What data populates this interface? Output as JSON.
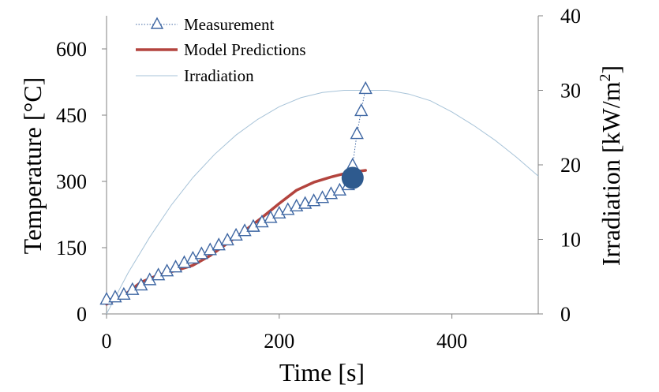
{
  "chart_data": {
    "type": "line",
    "x_axis": {
      "label": "Time [s]",
      "range": [
        0,
        500
      ],
      "ticks": [
        0,
        200,
        400
      ],
      "tick_labels": [
        "0",
        "200",
        "400"
      ]
    },
    "y_axis_left": {
      "label": "Temperature [°C]",
      "range": [
        0,
        675
      ],
      "ticks": [
        0,
        150,
        300,
        450,
        600
      ],
      "tick_labels": [
        "0",
        "150",
        "300",
        "450",
        "600"
      ]
    },
    "y_axis_right": {
      "label_main": "Irradiation [kW/m",
      "label_sup": "2",
      "label_end": "]",
      "range": [
        0,
        40
      ],
      "ticks": [
        0,
        10,
        20,
        30,
        40
      ],
      "tick_labels": [
        "0",
        "10",
        "20",
        "30",
        "40"
      ]
    },
    "grid": false,
    "legend_position": "top-left",
    "series": [
      {
        "name": "Measurement",
        "axis": "left",
        "marker": "triangle-open",
        "line": "dotted",
        "color": "#3f67a3",
        "x": [
          0,
          10,
          20,
          30,
          40,
          50,
          60,
          70,
          80,
          90,
          100,
          110,
          120,
          130,
          140,
          150,
          160,
          170,
          180,
          190,
          200,
          210,
          220,
          230,
          240,
          250,
          260,
          270,
          280,
          285,
          290,
          295,
          300
        ],
        "y": [
          33,
          38,
          44,
          55,
          65,
          77,
          88,
          97,
          106,
          116,
          126,
          136,
          145,
          156,
          167,
          178,
          188,
          198,
          208,
          218,
          228,
          236,
          244,
          250,
          256,
          263,
          272,
          280,
          292,
          337,
          408,
          460,
          510
        ]
      },
      {
        "name": "Model Predictions",
        "axis": "left",
        "line": "solid",
        "color": "#b3443e",
        "x": [
          0,
          20,
          40,
          60,
          80,
          100,
          120,
          140,
          160,
          180,
          200,
          220,
          240,
          260,
          280,
          300
        ],
        "y": [
          22,
          42,
          72,
          88,
          98,
          110,
          132,
          160,
          188,
          218,
          250,
          280,
          298,
          310,
          320,
          325
        ]
      },
      {
        "name": "Irradiation",
        "axis": "right",
        "line": "solid",
        "color": "#a7c3d8",
        "x": [
          0,
          25,
          50,
          75,
          100,
          125,
          150,
          175,
          200,
          225,
          250,
          275,
          300,
          325,
          350,
          375,
          400,
          425,
          450,
          475,
          500
        ],
        "y": [
          0,
          5.5,
          10.3,
          14.6,
          18.3,
          21.4,
          24.0,
          26.1,
          27.8,
          29.0,
          29.7,
          30.0,
          30.0,
          30.0,
          29.5,
          28.6,
          27.1,
          25.3,
          23.3,
          21.0,
          18.5
        ]
      }
    ],
    "highlight_point": {
      "x": 285,
      "y": 308,
      "color": "#2e5a8e"
    }
  }
}
